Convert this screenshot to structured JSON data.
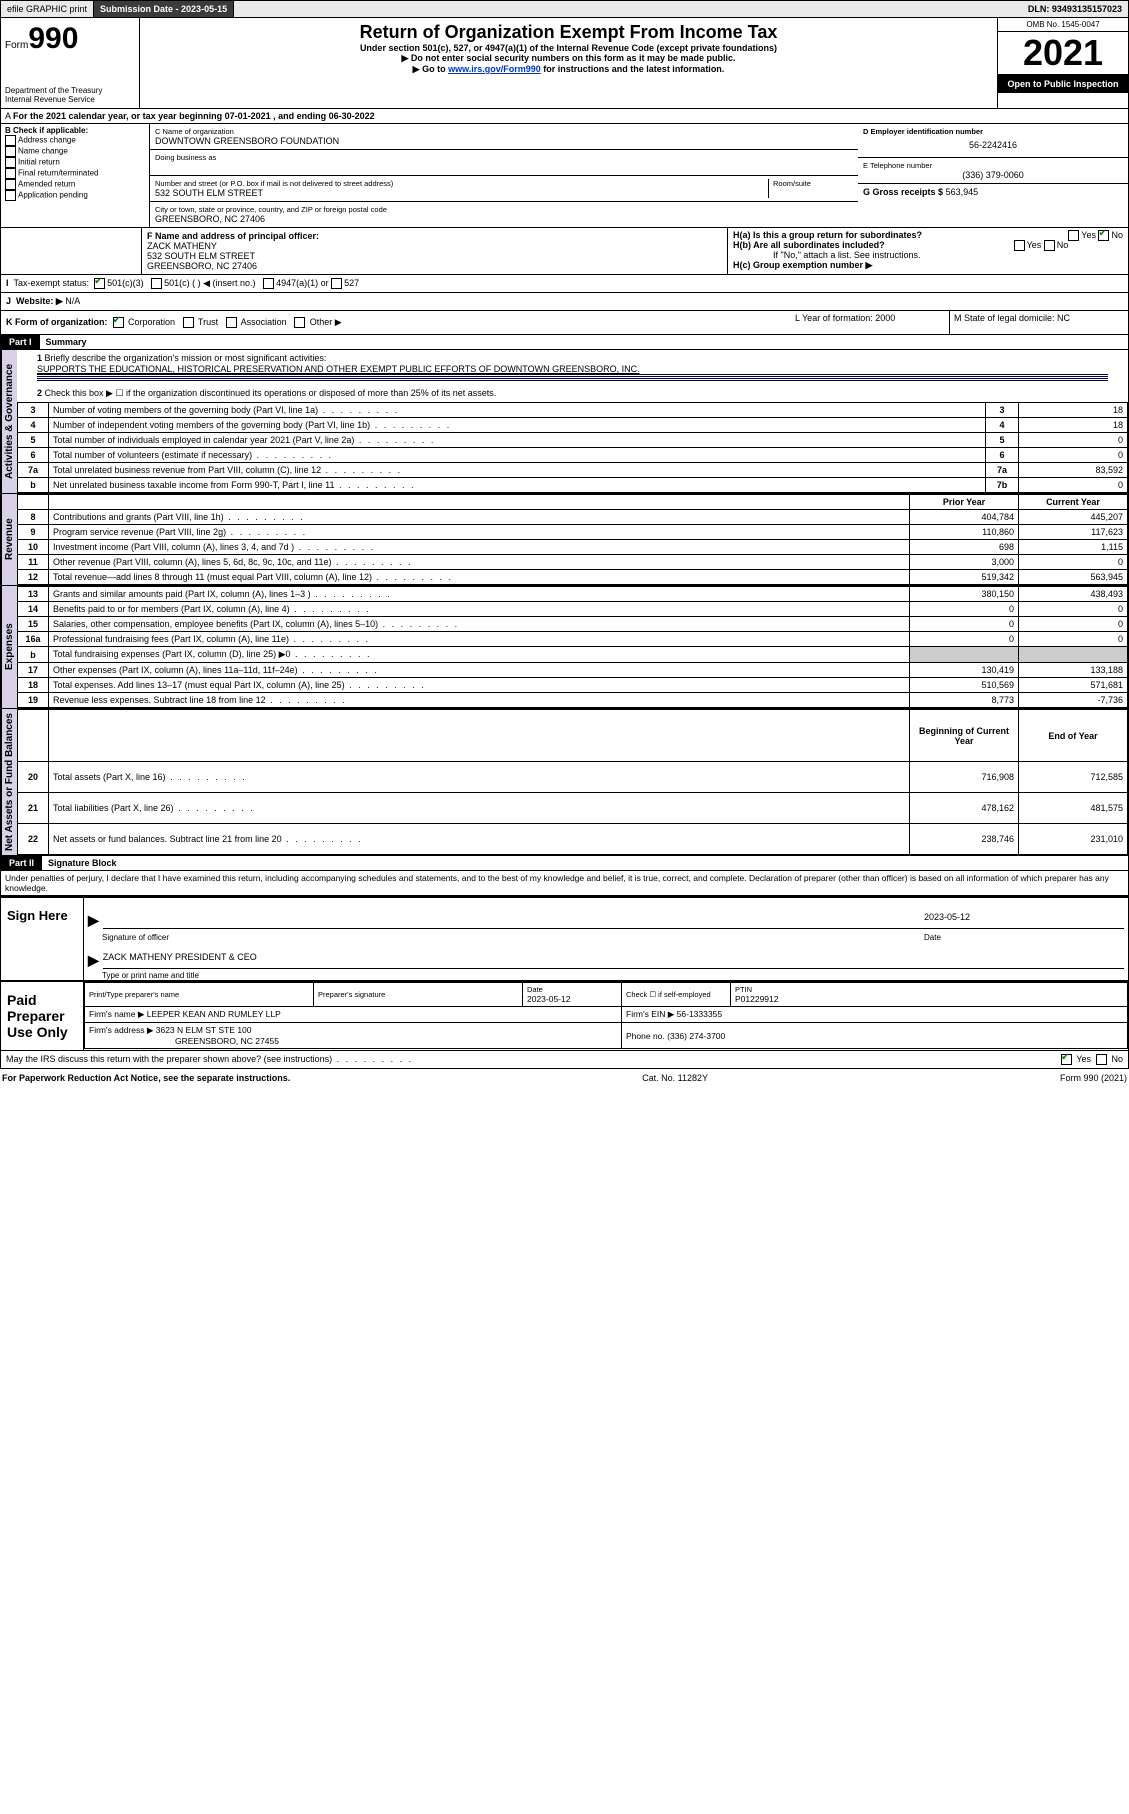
{
  "topbar": {
    "efile": "efile GRAPHIC print",
    "submission_label": "Submission Date - 2023-05-15",
    "dln": "DLN: 93493135157023"
  },
  "header": {
    "form_prefix": "Form",
    "form_number": "990",
    "dept": "Department of the Treasury",
    "irs": "Internal Revenue Service",
    "title": "Return of Organization Exempt From Income Tax",
    "subtitle": "Under section 501(c), 527, or 4947(a)(1) of the Internal Revenue Code (except private foundations)",
    "warn": "▶ Do not enter social security numbers on this form as it may be made public.",
    "goto_pre": "▶ Go to ",
    "goto_link": "www.irs.gov/Form990",
    "goto_post": " for instructions and the latest information.",
    "omb": "OMB No. 1545-0047",
    "year": "2021",
    "open": "Open to Public Inspection"
  },
  "A": {
    "text": "For the 2021 calendar year, or tax year beginning 07-01-2021   , and ending 06-30-2022"
  },
  "B": {
    "title": "B Check if applicable:",
    "opts": [
      "Address change",
      "Name change",
      "Initial return",
      "Final return/terminated",
      "Amended return",
      "Application pending"
    ]
  },
  "C": {
    "name_lbl": "C Name of organization",
    "name": "DOWNTOWN GREENSBORO FOUNDATION",
    "dba_lbl": "Doing business as",
    "street_lbl": "Number and street (or P.O. box if mail is not delivered to street address)",
    "room_lbl": "Room/suite",
    "street": "532 SOUTH ELM STREET",
    "city_lbl": "City or town, state or province, country, and ZIP or foreign postal code",
    "city": "GREENSBORO, NC  27406"
  },
  "D": {
    "lbl": "D Employer identification number",
    "val": "56-2242416"
  },
  "E": {
    "lbl": "E Telephone number",
    "val": "(336) 379-0060"
  },
  "G": {
    "lbl": "G Gross receipts $",
    "val": "563,945"
  },
  "F": {
    "lbl": "F  Name and address of principal officer:",
    "name": "ZACK MATHENY",
    "addr1": "532 SOUTH ELM STREET",
    "addr2": "GREENSBORO, NC  27406"
  },
  "H": {
    "a": "H(a)  Is this a group return for subordinates?",
    "b": "H(b)  Are all subordinates included?",
    "note": "If \"No,\" attach a list. See instructions.",
    "c": "H(c)  Group exemption number ▶",
    "yes": "Yes",
    "no": "No"
  },
  "I": {
    "lbl": "Tax-exempt status:",
    "o1": "501(c)(3)",
    "o2": "501(c) (   ) ◀ (insert no.)",
    "o3": "4947(a)(1) or",
    "o4": "527"
  },
  "J": {
    "lbl": "Website: ▶",
    "val": "N/A"
  },
  "K": {
    "lbl": "K Form of organization:",
    "corp": "Corporation",
    "trust": "Trust",
    "assoc": "Association",
    "other": "Other ▶"
  },
  "L": {
    "lbl": "L Year of formation: 2000"
  },
  "M": {
    "lbl": "M State of legal domicile: NC"
  },
  "part1": {
    "hdr": "Part I",
    "title": "Summary"
  },
  "summary": {
    "l1_lbl": "Briefly describe the organization's mission or most significant activities:",
    "l1_val": "SUPPORTS THE EDUCATIONAL, HISTORICAL PRESERVATION AND OTHER EXEMPT PUBLIC EFFORTS OF DOWNTOWN GREENSBORO, INC.",
    "l2": "Check this box ▶ ☐  if the organization discontinued its operations or disposed of more than 25% of its net assets.",
    "rows_act": [
      {
        "n": "3",
        "t": "Number of voting members of the governing body (Part VI, line 1a)",
        "b": "3",
        "v": "18"
      },
      {
        "n": "4",
        "t": "Number of independent voting members of the governing body (Part VI, line 1b)",
        "b": "4",
        "v": "18"
      },
      {
        "n": "5",
        "t": "Total number of individuals employed in calendar year 2021 (Part V, line 2a)",
        "b": "5",
        "v": "0"
      },
      {
        "n": "6",
        "t": "Total number of volunteers (estimate if necessary)",
        "b": "6",
        "v": "0"
      },
      {
        "n": "7a",
        "t": "Total unrelated business revenue from Part VIII, column (C), line 12",
        "b": "7a",
        "v": "83,592"
      },
      {
        "n": "b",
        "t": "Net unrelated business taxable income from Form 990-T, Part I, line 11",
        "b": "7b",
        "v": "0"
      }
    ],
    "col_prior": "Prior Year",
    "col_curr": "Current Year",
    "rows_rev": [
      {
        "n": "8",
        "t": "Contributions and grants (Part VIII, line 1h)",
        "p": "404,784",
        "c": "445,207"
      },
      {
        "n": "9",
        "t": "Program service revenue (Part VIII, line 2g)",
        "p": "110,860",
        "c": "117,623"
      },
      {
        "n": "10",
        "t": "Investment income (Part VIII, column (A), lines 3, 4, and 7d )",
        "p": "698",
        "c": "1,115"
      },
      {
        "n": "11",
        "t": "Other revenue (Part VIII, column (A), lines 5, 6d, 8c, 9c, 10c, and 11e)",
        "p": "3,000",
        "c": "0"
      },
      {
        "n": "12",
        "t": "Total revenue—add lines 8 through 11 (must equal Part VIII, column (A), line 12)",
        "p": "519,342",
        "c": "563,945"
      }
    ],
    "rows_exp": [
      {
        "n": "13",
        "t": "Grants and similar amounts paid (Part IX, column (A), lines 1–3 )",
        "p": "380,150",
        "c": "438,493"
      },
      {
        "n": "14",
        "t": "Benefits paid to or for members (Part IX, column (A), line 4)",
        "p": "0",
        "c": "0"
      },
      {
        "n": "15",
        "t": "Salaries, other compensation, employee benefits (Part IX, column (A), lines 5–10)",
        "p": "0",
        "c": "0"
      },
      {
        "n": "16a",
        "t": "Professional fundraising fees (Part IX, column (A), line 11e)",
        "p": "0",
        "c": "0"
      },
      {
        "n": "b",
        "t": "Total fundraising expenses (Part IX, column (D), line 25) ▶0",
        "p": "",
        "c": "",
        "grey": true
      },
      {
        "n": "17",
        "t": "Other expenses (Part IX, column (A), lines 11a–11d, 11f–24e)",
        "p": "130,419",
        "c": "133,188"
      },
      {
        "n": "18",
        "t": "Total expenses. Add lines 13–17 (must equal Part IX, column (A), line 25)",
        "p": "510,569",
        "c": "571,681"
      },
      {
        "n": "19",
        "t": "Revenue less expenses. Subtract line 18 from line 12",
        "p": "8,773",
        "c": "-7,736"
      }
    ],
    "col_beg": "Beginning of Current Year",
    "col_end": "End of Year",
    "rows_net": [
      {
        "n": "20",
        "t": "Total assets (Part X, line 16)",
        "p": "716,908",
        "c": "712,585"
      },
      {
        "n": "21",
        "t": "Total liabilities (Part X, line 26)",
        "p": "478,162",
        "c": "481,575"
      },
      {
        "n": "22",
        "t": "Net assets or fund balances. Subtract line 21 from line 20",
        "p": "238,746",
        "c": "231,010"
      }
    ]
  },
  "sidelabels": {
    "act": "Activities & Governance",
    "rev": "Revenue",
    "exp": "Expenses",
    "net": "Net Assets or Fund Balances"
  },
  "part2": {
    "hdr": "Part II",
    "title": "Signature Block",
    "decl": "Under penalties of perjury, I declare that I have examined this return, including accompanying schedules and statements, and to the best of my knowledge and belief, it is true, correct, and complete. Declaration of preparer (other than officer) is based on all information of which preparer has any knowledge."
  },
  "sign": {
    "here": "Sign Here",
    "sig_officer": "Signature of officer",
    "date": "Date",
    "date_val": "2023-05-12",
    "name": "ZACK MATHENY  PRESIDENT & CEO",
    "type": "Type or print name and title"
  },
  "paid": {
    "here": "Paid Preparer Use Only",
    "h1": "Print/Type preparer's name",
    "h2": "Preparer's signature",
    "h3": "Date",
    "h3v": "2023-05-12",
    "h4": "Check ☐ if self-employed",
    "h5": "PTIN",
    "h5v": "P01229912",
    "firm_lbl": "Firm's name    ▶",
    "firm": "LEEPER KEAN AND RUMLEY LLP",
    "ein_lbl": "Firm's EIN ▶",
    "ein": "56-1333355",
    "addr_lbl": "Firm's address ▶",
    "addr1": "3623 N ELM ST STE 100",
    "addr2": "GREENSBORO, NC  27455",
    "phone_lbl": "Phone no.",
    "phone": "(336) 274-3700"
  },
  "may_irs": "May the IRS discuss this return with the preparer shown above? (see instructions)",
  "footer": {
    "left": "For Paperwork Reduction Act Notice, see the separate instructions.",
    "mid": "Cat. No. 11282Y",
    "right": "Form 990 (2021)"
  }
}
